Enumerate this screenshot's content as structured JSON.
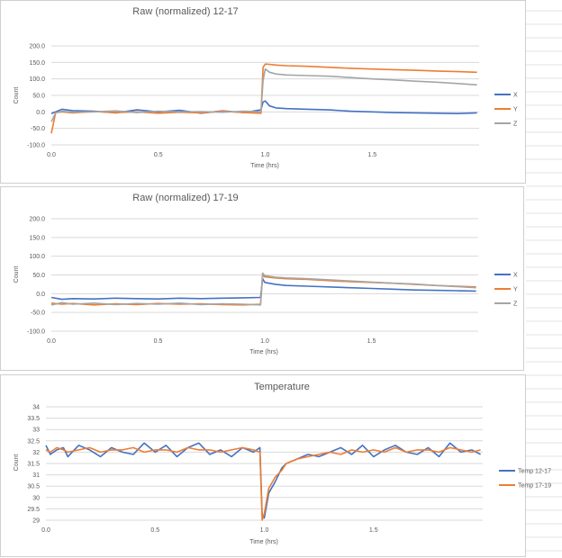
{
  "chart_data": [
    {
      "type": "line",
      "title": "Raw (normalized) 12-17",
      "xlabel": "Time (hrs)",
      "ylabel": "Count",
      "xlim": [
        0,
        2
      ],
      "ylim": [
        -100,
        200
      ],
      "xticks": [
        "0.0",
        "0.5",
        "1.0",
        "1.5"
      ],
      "yticks": [
        "-100.0",
        "-50.0",
        "0.0",
        "50.0",
        "100.0",
        "150.0",
        "200.0"
      ],
      "legend": "right",
      "series": [
        {
          "name": "X",
          "color": "#4472c4",
          "x": [
            0.0,
            0.02,
            0.05,
            0.1,
            0.2,
            0.3,
            0.4,
            0.5,
            0.6,
            0.7,
            0.8,
            0.9,
            0.98,
            0.99,
            1.0,
            1.02,
            1.05,
            1.1,
            1.2,
            1.3,
            1.4,
            1.5,
            1.6,
            1.7,
            1.8,
            1.9,
            1.99
          ],
          "y": [
            -5,
            0,
            8,
            4,
            2,
            -3,
            6,
            0,
            5,
            -4,
            3,
            -2,
            6,
            30,
            33,
            18,
            12,
            10,
            8,
            6,
            2,
            0,
            -2,
            -3,
            -4,
            -5,
            -3
          ]
        },
        {
          "name": "Y",
          "color": "#ed7d31",
          "x": [
            0.0,
            0.02,
            0.05,
            0.1,
            0.2,
            0.3,
            0.4,
            0.5,
            0.6,
            0.7,
            0.8,
            0.9,
            0.98,
            0.99,
            1.0,
            1.02,
            1.05,
            1.1,
            1.2,
            1.3,
            1.4,
            1.5,
            1.6,
            1.7,
            1.8,
            1.9,
            1.99
          ],
          "y": [
            -65,
            -2,
            0,
            -3,
            1,
            -2,
            0,
            -4,
            -1,
            -3,
            2,
            -2,
            -4,
            135,
            145,
            144,
            142,
            140,
            138,
            135,
            132,
            130,
            128,
            126,
            124,
            122,
            120
          ]
        },
        {
          "name": "Z",
          "color": "#a5a5a5",
          "x": [
            0.0,
            0.02,
            0.05,
            0.1,
            0.2,
            0.3,
            0.4,
            0.5,
            0.6,
            0.7,
            0.8,
            0.9,
            0.98,
            0.99,
            1.0,
            1.02,
            1.05,
            1.1,
            1.2,
            1.3,
            1.4,
            1.5,
            1.6,
            1.7,
            1.8,
            1.9,
            1.99
          ],
          "y": [
            -30,
            -3,
            2,
            -1,
            0,
            3,
            -2,
            2,
            0,
            1,
            -1,
            2,
            0,
            95,
            130,
            120,
            115,
            112,
            110,
            108,
            104,
            100,
            97,
            93,
            90,
            86,
            82
          ]
        }
      ]
    },
    {
      "type": "line",
      "title": "Raw (normalized) 17-19",
      "xlabel": "Time (hrs)",
      "ylabel": "Count",
      "xlim": [
        0,
        2
      ],
      "ylim": [
        -100,
        200
      ],
      "xticks": [
        "0.0",
        "0.5",
        "1.0",
        "1.5"
      ],
      "yticks": [
        "-100.0",
        "-50.0",
        "0.0",
        "50.0",
        "100.0",
        "150.0",
        "200.0"
      ],
      "legend": "right",
      "series": [
        {
          "name": "X",
          "color": "#4472c4",
          "x": [
            0.0,
            0.05,
            0.1,
            0.2,
            0.3,
            0.4,
            0.5,
            0.6,
            0.7,
            0.8,
            0.9,
            0.98,
            0.99,
            1.0,
            1.05,
            1.1,
            1.2,
            1.3,
            1.4,
            1.5,
            1.6,
            1.7,
            1.8,
            1.9,
            1.99
          ],
          "y": [
            -10,
            -15,
            -13,
            -14,
            -12,
            -13,
            -14,
            -12,
            -13,
            -12,
            -11,
            -10,
            40,
            30,
            25,
            22,
            20,
            18,
            16,
            14,
            12,
            10,
            9,
            8,
            7
          ]
        },
        {
          "name": "Y",
          "color": "#ed7d31",
          "x": [
            0.0,
            0.05,
            0.1,
            0.2,
            0.3,
            0.4,
            0.5,
            0.6,
            0.7,
            0.8,
            0.9,
            0.98,
            0.99,
            1.0,
            1.05,
            1.1,
            1.2,
            1.3,
            1.4,
            1.5,
            1.6,
            1.7,
            1.8,
            1.9,
            1.99
          ],
          "y": [
            -25,
            -28,
            -26,
            -30,
            -27,
            -29,
            -26,
            -28,
            -27,
            -29,
            -30,
            -28,
            50,
            45,
            42,
            40,
            38,
            35,
            32,
            30,
            28,
            25,
            22,
            20,
            18
          ]
        },
        {
          "name": "Z",
          "color": "#a5a5a5",
          "x": [
            0.0,
            0.05,
            0.1,
            0.2,
            0.3,
            0.4,
            0.5,
            0.6,
            0.7,
            0.8,
            0.9,
            0.98,
            0.99,
            1.0,
            1.05,
            1.1,
            1.2,
            1.3,
            1.4,
            1.5,
            1.6,
            1.7,
            1.8,
            1.9,
            1.99
          ],
          "y": [
            -30,
            -24,
            -28,
            -25,
            -29,
            -26,
            -28,
            -25,
            -29,
            -27,
            -28,
            -30,
            55,
            48,
            44,
            42,
            40,
            37,
            34,
            31,
            28,
            26,
            22,
            19,
            16
          ]
        }
      ]
    },
    {
      "type": "line",
      "title": "Temperature",
      "xlabel": "Time (hrs)",
      "ylabel": "Count",
      "xlim": [
        0,
        2
      ],
      "ylim": [
        29,
        34
      ],
      "xticks": [
        "0.0",
        "0.5",
        "1.0",
        "1.5"
      ],
      "yticks": [
        "29",
        "29.5",
        "30",
        "30.5",
        "31",
        "31.5",
        "32",
        "32.5",
        "33",
        "33.5",
        "34"
      ],
      "legend": "right",
      "series": [
        {
          "name": "Temp 12-17",
          "color": "#4472c4",
          "x": [
            0.0,
            0.02,
            0.05,
            0.08,
            0.1,
            0.15,
            0.2,
            0.25,
            0.3,
            0.35,
            0.4,
            0.45,
            0.5,
            0.55,
            0.6,
            0.65,
            0.7,
            0.75,
            0.8,
            0.85,
            0.9,
            0.95,
            0.98,
            0.99,
            1.0,
            1.02,
            1.05,
            1.08,
            1.1,
            1.15,
            1.2,
            1.25,
            1.3,
            1.35,
            1.4,
            1.45,
            1.5,
            1.55,
            1.6,
            1.65,
            1.7,
            1.75,
            1.8,
            1.85,
            1.9,
            1.95,
            1.99
          ],
          "y": [
            32.3,
            31.9,
            32.1,
            32.2,
            31.8,
            32.3,
            32.1,
            31.8,
            32.2,
            32.0,
            31.9,
            32.4,
            32.0,
            32.3,
            31.8,
            32.2,
            32.4,
            31.9,
            32.1,
            31.8,
            32.2,
            32.0,
            32.2,
            29.2,
            29.1,
            30.2,
            30.7,
            31.3,
            31.5,
            31.7,
            31.9,
            31.8,
            32.0,
            32.2,
            31.9,
            32.3,
            31.8,
            32.1,
            32.3,
            32.0,
            31.9,
            32.2,
            31.8,
            32.4,
            32.0,
            32.1,
            31.9
          ]
        },
        {
          "name": "Temp 17-19",
          "color": "#ed7d31",
          "x": [
            0.0,
            0.02,
            0.05,
            0.08,
            0.1,
            0.15,
            0.2,
            0.25,
            0.3,
            0.35,
            0.4,
            0.45,
            0.5,
            0.55,
            0.6,
            0.65,
            0.7,
            0.75,
            0.8,
            0.85,
            0.9,
            0.95,
            0.98,
            0.99,
            1.0,
            1.02,
            1.05,
            1.08,
            1.1,
            1.15,
            1.2,
            1.25,
            1.3,
            1.35,
            1.4,
            1.45,
            1.5,
            1.55,
            1.6,
            1.65,
            1.7,
            1.75,
            1.8,
            1.85,
            1.9,
            1.95,
            1.99
          ],
          "y": [
            32.1,
            32.0,
            32.2,
            32.1,
            32.0,
            32.1,
            32.2,
            32.0,
            32.1,
            32.1,
            32.2,
            32.0,
            32.1,
            32.1,
            32.0,
            32.2,
            32.1,
            32.1,
            32.0,
            32.1,
            32.2,
            32.1,
            32.0,
            29.0,
            29.3,
            30.4,
            30.9,
            31.2,
            31.5,
            31.7,
            31.8,
            31.9,
            32.0,
            31.9,
            32.1,
            32.0,
            32.1,
            32.0,
            32.2,
            32.0,
            32.1,
            32.1,
            32.0,
            32.2,
            32.1,
            32.0,
            32.1
          ]
        }
      ]
    }
  ]
}
